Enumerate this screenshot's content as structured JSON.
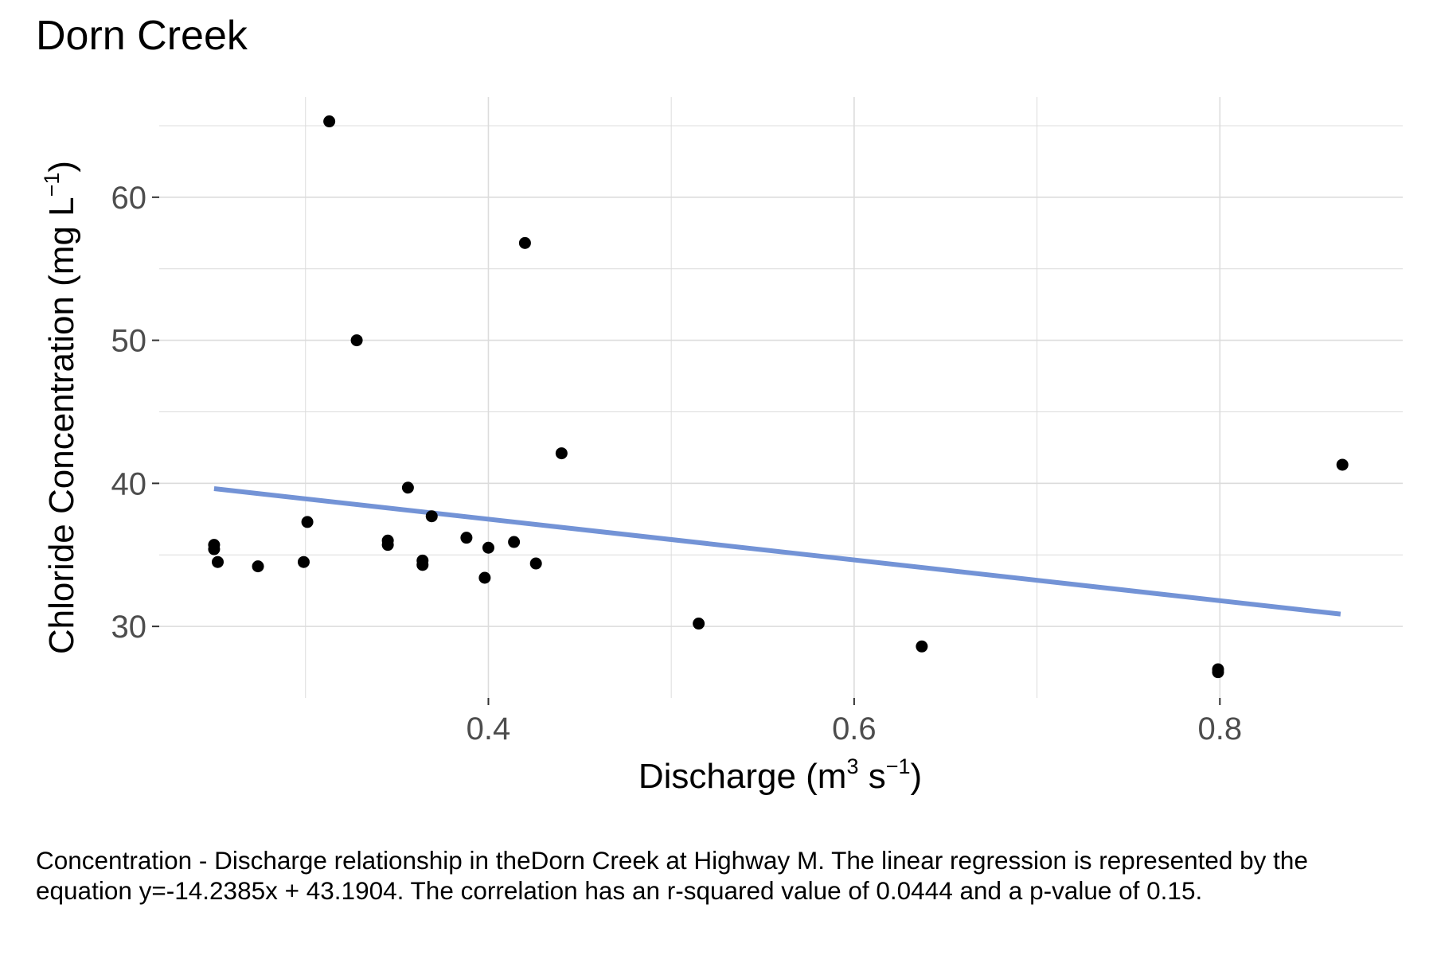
{
  "chart_data": {
    "type": "scatter",
    "title": "Dorn Creek",
    "xlabel": {
      "base": "Discharge (m",
      "exp1": "3",
      "mid": " s",
      "exp2": "−1",
      "end": ")"
    },
    "ylabel": {
      "base": "Chloride Concentration (mg L",
      "exp": "−1",
      "end": ")"
    },
    "xlim": [
      0.22,
      0.9
    ],
    "ylim": [
      25,
      67
    ],
    "x_ticks": [
      0.4,
      0.6,
      0.8
    ],
    "x_tick_labels": [
      "0.4",
      "0.6",
      "0.8"
    ],
    "y_ticks": [
      30,
      40,
      50,
      60
    ],
    "y_tick_labels": [
      "30",
      "40",
      "50",
      "60"
    ],
    "grid": true,
    "points": [
      {
        "x": 0.25,
        "y": 35.7
      },
      {
        "x": 0.25,
        "y": 35.4
      },
      {
        "x": 0.252,
        "y": 34.5
      },
      {
        "x": 0.274,
        "y": 34.2
      },
      {
        "x": 0.299,
        "y": 34.5
      },
      {
        "x": 0.301,
        "y": 37.3
      },
      {
        "x": 0.313,
        "y": 65.3
      },
      {
        "x": 0.328,
        "y": 50.0
      },
      {
        "x": 0.345,
        "y": 36.0
      },
      {
        "x": 0.345,
        "y": 35.7
      },
      {
        "x": 0.356,
        "y": 39.7
      },
      {
        "x": 0.364,
        "y": 34.6
      },
      {
        "x": 0.364,
        "y": 34.3
      },
      {
        "x": 0.369,
        "y": 37.7
      },
      {
        "x": 0.388,
        "y": 36.2
      },
      {
        "x": 0.398,
        "y": 33.4
      },
      {
        "x": 0.4,
        "y": 35.5
      },
      {
        "x": 0.414,
        "y": 35.9
      },
      {
        "x": 0.42,
        "y": 56.8
      },
      {
        "x": 0.426,
        "y": 34.4
      },
      {
        "x": 0.44,
        "y": 42.1
      },
      {
        "x": 0.515,
        "y": 30.2
      },
      {
        "x": 0.637,
        "y": 28.6
      },
      {
        "x": 0.799,
        "y": 27.0
      },
      {
        "x": 0.799,
        "y": 26.8
      },
      {
        "x": 0.867,
        "y": 41.3
      }
    ],
    "regression": {
      "slope": -14.2385,
      "intercept": 43.1904,
      "x_range": [
        0.25,
        0.866
      ]
    },
    "colors": {
      "points": "#000000",
      "regression": "#7393d6",
      "grid": "#dcdcdc",
      "tick_label": "#4d4d4d"
    },
    "caption": "Concentration - Discharge relationship in theDorn Creek at Highway M. The linear regression is represented by the equation y=-14.2385x + 43.1904. The correlation has an r-squared value of 0.0444 and a p-value of 0.15."
  }
}
